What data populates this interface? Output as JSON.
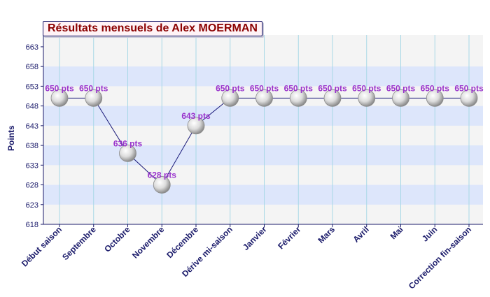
{
  "chart_data": {
    "type": "line",
    "title": "Résultats mensuels de Alex MOERMAN",
    "xlabel": "",
    "ylabel": "Points",
    "categories": [
      "Début saison",
      "Septembre",
      "Octobre",
      "Novembre",
      "Décembre",
      "Dérive mi-saison",
      "Janvier",
      "Février",
      "Mars",
      "Avril",
      "Mai",
      "Juin",
      "Correction fin-saison"
    ],
    "series": [
      {
        "values": [
          650,
          650,
          636,
          628,
          643,
          650,
          650,
          650,
          650,
          650,
          650,
          650,
          650
        ],
        "data_labels": [
          "650 pts",
          "650 pts",
          "636 pts",
          "628 pts",
          "643 pts",
          "650 pts",
          "650 pts",
          "650 pts",
          "650 pts",
          "650 pts",
          "650 pts",
          "650 pts",
          "650 pts"
        ]
      }
    ],
    "ylim": [
      618,
      666
    ],
    "yticks": [
      618,
      623,
      628,
      633,
      638,
      643,
      648,
      653,
      658,
      663
    ],
    "grid": true,
    "colors": {
      "line": "#1a1a7a",
      "label": "#9933cc",
      "axis": "#1a1a6a",
      "band_light": "#f4f4f4",
      "band_blue": "#dde6fb",
      "vgrid": "#a8d8e6",
      "title_text": "#8b0000"
    }
  }
}
